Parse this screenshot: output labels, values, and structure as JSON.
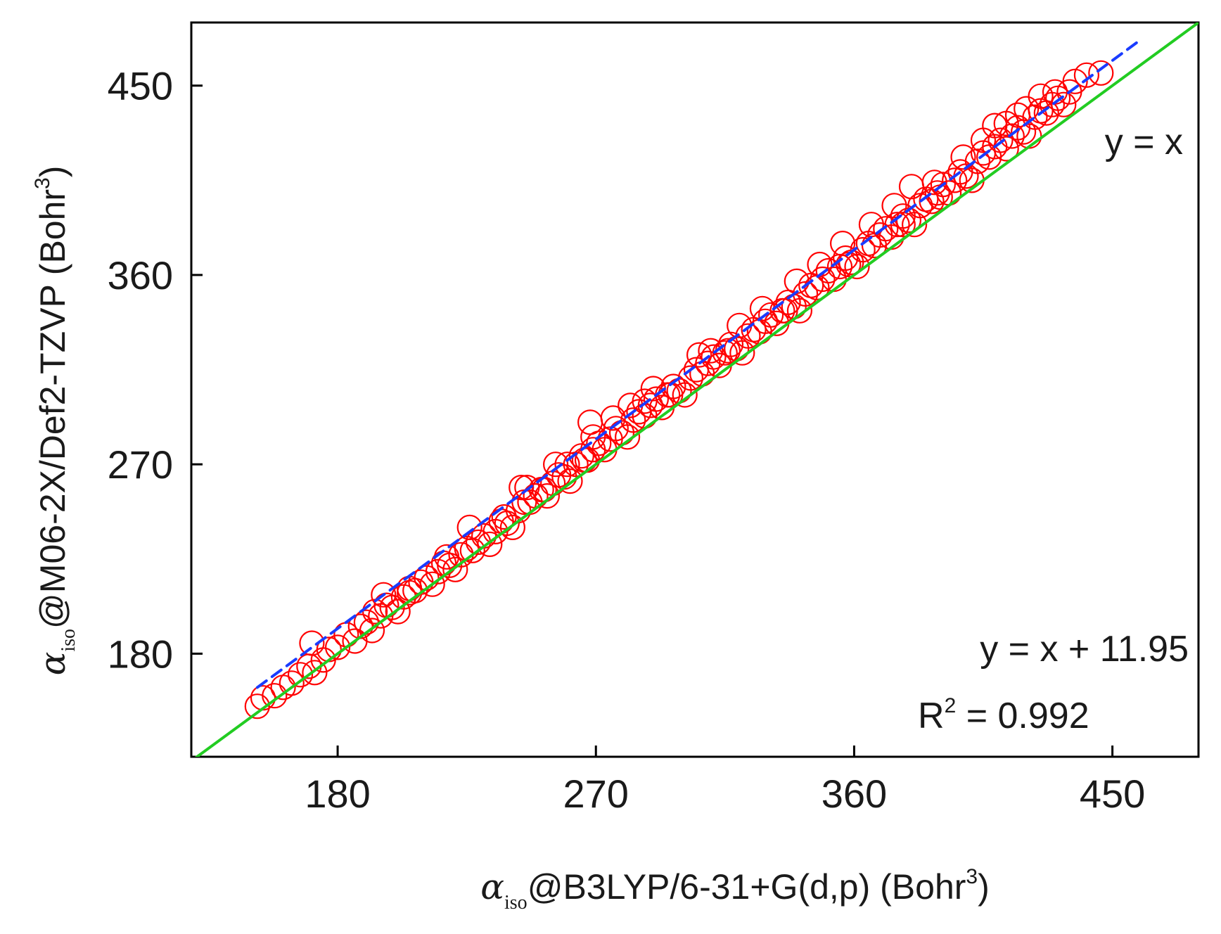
{
  "chart_data": {
    "type": "scatter",
    "title": "",
    "xlabel": {
      "symbol": "α",
      "subscript": "iso",
      "text": "@B3LYP/6-31+G(d,p) (Bohr",
      "superscript": "3",
      "suffix": ")"
    },
    "ylabel": {
      "symbol": "α",
      "subscript": "iso",
      "text": "@M06-2X/Def2-TZVP (Bohr",
      "superscript": "3",
      "suffix": ")"
    },
    "xlim": [
      129,
      480
    ],
    "ylim": [
      131,
      480
    ],
    "xticks": [
      180,
      270,
      360,
      450
    ],
    "yticks": [
      180,
      270,
      360,
      450
    ],
    "xtick_labels": [
      "180",
      "270",
      "360",
      "450"
    ],
    "ytick_labels": [
      "180",
      "270",
      "360",
      "450"
    ],
    "grid": false,
    "annotations": {
      "identity_label": "y = x",
      "fit_equation": "y = x + 11.95",
      "r2_prefix": "R",
      "r2_superscript": "2",
      "r2_value": " = 0.992"
    },
    "lines": [
      {
        "id": "identity",
        "slope": 1,
        "intercept": 0,
        "x_range": [
          129,
          480
        ],
        "color": "#22cc22",
        "style": "solid"
      },
      {
        "id": "fit",
        "slope": 1,
        "intercept": 11.95,
        "x_range": [
          152,
          460
        ],
        "color": "#1a3cff",
        "style": "dashed"
      }
    ],
    "marker": {
      "shape": "open-circle",
      "color": "#ff0000"
    },
    "series": [
      {
        "points": [
          [
            152,
            155
          ],
          [
            154,
            159
          ],
          [
            158,
            160
          ],
          [
            161,
            164
          ],
          [
            164,
            166
          ],
          [
            167,
            170
          ],
          [
            170,
            174
          ],
          [
            172,
            171
          ],
          [
            175,
            177
          ],
          [
            177,
            182
          ],
          [
            180,
            183
          ],
          [
            183,
            189
          ],
          [
            186,
            186
          ],
          [
            188,
            193
          ],
          [
            190,
            195
          ],
          [
            192,
            191
          ],
          [
            195,
            198
          ],
          [
            197,
            203
          ],
          [
            199,
            202
          ],
          [
            201,
            200
          ],
          [
            203,
            207
          ],
          [
            205,
            211
          ],
          [
            207,
            210
          ],
          [
            209,
            214
          ],
          [
            211,
            216
          ],
          [
            213,
            213
          ],
          [
            215,
            219
          ],
          [
            217,
            223
          ],
          [
            219,
            222
          ],
          [
            221,
            220
          ],
          [
            223,
            227
          ],
          [
            225,
            230
          ],
          [
            227,
            229
          ],
          [
            229,
            233
          ],
          [
            231,
            236
          ],
          [
            233,
            232
          ],
          [
            235,
            238
          ],
          [
            237,
            243
          ],
          [
            239,
            242
          ],
          [
            241,
            240
          ],
          [
            243,
            248
          ],
          [
            245,
            252
          ],
          [
            247,
            252
          ],
          [
            249,
            255
          ],
          [
            251,
            258
          ],
          [
            253,
            255
          ],
          [
            255,
            261
          ],
          [
            257,
            265
          ],
          [
            259,
            264
          ],
          [
            261,
            262
          ],
          [
            263,
            270
          ],
          [
            265,
            274
          ],
          [
            267,
            272
          ],
          [
            269,
            277
          ],
          [
            271,
            280
          ],
          [
            273,
            277
          ],
          [
            275,
            282
          ],
          [
            277,
            287
          ],
          [
            279,
            285
          ],
          [
            281,
            283
          ],
          [
            283,
            291
          ],
          [
            285,
            295
          ],
          [
            287,
            293
          ],
          [
            289,
            298
          ],
          [
            291,
            301
          ],
          [
            293,
            297
          ],
          [
            295,
            303
          ],
          [
            297,
            307
          ],
          [
            299,
            305
          ],
          [
            301,
            303
          ],
          [
            303,
            311
          ],
          [
            305,
            315
          ],
          [
            307,
            313
          ],
          [
            309,
            318
          ],
          [
            311,
            321
          ],
          [
            313,
            317
          ],
          [
            315,
            323
          ],
          [
            317,
            327
          ],
          [
            319,
            325
          ],
          [
            321,
            323
          ],
          [
            323,
            331
          ],
          [
            325,
            334
          ],
          [
            327,
            333
          ],
          [
            329,
            338
          ],
          [
            331,
            341
          ],
          [
            333,
            337
          ],
          [
            335,
            343
          ],
          [
            337,
            347
          ],
          [
            339,
            345
          ],
          [
            341,
            343
          ],
          [
            343,
            351
          ],
          [
            345,
            355
          ],
          [
            347,
            354
          ],
          [
            349,
            358
          ],
          [
            351,
            362
          ],
          [
            353,
            358
          ],
          [
            355,
            364
          ],
          [
            357,
            368
          ],
          [
            359,
            366
          ],
          [
            361,
            364
          ],
          [
            363,
            372
          ],
          [
            365,
            375
          ],
          [
            367,
            374
          ],
          [
            369,
            379
          ],
          [
            371,
            382
          ],
          [
            373,
            378
          ],
          [
            375,
            384
          ],
          [
            377,
            388
          ],
          [
            379,
            386
          ],
          [
            381,
            384
          ],
          [
            383,
            393
          ],
          [
            385,
            396
          ],
          [
            387,
            395
          ],
          [
            389,
            399
          ],
          [
            391,
            403
          ],
          [
            393,
            399
          ],
          [
            395,
            405
          ],
          [
            397,
            409
          ],
          [
            399,
            407
          ],
          [
            401,
            405
          ],
          [
            403,
            414
          ],
          [
            405,
            418
          ],
          [
            407,
            416
          ],
          [
            409,
            421
          ],
          [
            411,
            424
          ],
          [
            413,
            420
          ],
          [
            415,
            426
          ],
          [
            417,
            430
          ],
          [
            419,
            428
          ],
          [
            421,
            426
          ],
          [
            423,
            435
          ],
          [
            425,
            438
          ],
          [
            427,
            437
          ],
          [
            429,
            441
          ],
          [
            431,
            444
          ],
          [
            433,
            441
          ],
          [
            435,
            447
          ],
          [
            437,
            452
          ],
          [
            441,
            455
          ],
          [
            446,
            456
          ],
          [
            171,
            185
          ],
          [
            196,
            208
          ],
          [
            226,
            240
          ],
          [
            246,
            259
          ],
          [
            260,
            270
          ],
          [
            276,
            292
          ],
          [
            268,
            290
          ],
          [
            287,
            300
          ],
          [
            306,
            322
          ],
          [
            320,
            336
          ],
          [
            340,
            357
          ],
          [
            356,
            375
          ],
          [
            374,
            393
          ],
          [
            380,
            402
          ],
          [
            398,
            416
          ],
          [
            409,
            431
          ],
          [
            417,
            436
          ],
          [
            425,
            445
          ],
          [
            193,
            200
          ],
          [
            218,
            226
          ],
          [
            238,
            245
          ],
          [
            252,
            258
          ],
          [
            266,
            272
          ],
          [
            296,
            303
          ],
          [
            316,
            324
          ],
          [
            336,
            343
          ],
          [
            358,
            365
          ],
          [
            377,
            384
          ],
          [
            390,
            397
          ],
          [
            205,
            209
          ],
          [
            244,
            259
          ],
          [
            282,
            298
          ],
          [
            310,
            324
          ],
          [
            348,
            365
          ],
          [
            269,
            283
          ],
          [
            256,
            270
          ],
          [
            290,
            306
          ],
          [
            328,
            344
          ],
          [
            366,
            384
          ],
          [
            405,
            424
          ],
          [
            388,
            404
          ],
          [
            430,
            447
          ],
          [
            420,
            439
          ],
          [
            413,
            432
          ]
        ]
      }
    ]
  }
}
